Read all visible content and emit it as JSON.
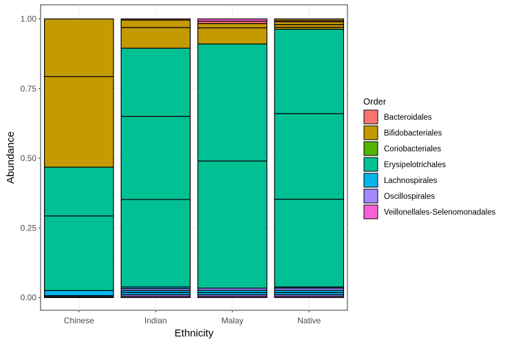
{
  "chart_data": {
    "type": "bar",
    "stacked": true,
    "xlabel": "Ethnicity",
    "ylabel": "Abundance",
    "ylim": [
      0,
      1
    ],
    "yticks": [
      "0.00",
      "0.25",
      "0.50",
      "0.75",
      "1.00"
    ],
    "categories": [
      "Chinese",
      "Indian",
      "Malay",
      "Native"
    ],
    "legend": {
      "title": "Order",
      "position": "right"
    },
    "grid": true,
    "series": [
      {
        "name": "Bacteroidales",
        "color": "#F8766D"
      },
      {
        "name": "Bifidobacteriales",
        "color": "#C49A00"
      },
      {
        "name": "Coriobacteriales",
        "color": "#53B400"
      },
      {
        "name": "Erysipelotrichales",
        "color": "#00C094"
      },
      {
        "name": "Lachnospirales",
        "color": "#00B6EB"
      },
      {
        "name": "Oscillospirales",
        "color": "#A58AFF"
      },
      {
        "name": "Veillonellales-Selenomonadales",
        "color": "#FB61D7"
      }
    ],
    "bars": [
      {
        "category": "Chinese",
        "segments": [
          {
            "series": "Veillonellales-Selenomonadales",
            "value": 0.003
          },
          {
            "series": "Oscillospirales",
            "value": 0.004
          },
          {
            "series": "Lachnospirales",
            "value": 0.018
          },
          {
            "series": "Erysipelotrichales",
            "value": 0.268
          },
          {
            "series": "Erysipelotrichales",
            "value": 0.175
          },
          {
            "series": "Bifidobacteriales",
            "value": 0.325
          },
          {
            "series": "Bifidobacteriales",
            "value": 0.207
          }
        ]
      },
      {
        "category": "Indian",
        "segments": [
          {
            "series": "Veillonellales-Selenomonadales",
            "value": 0.004
          },
          {
            "series": "Oscillospirales",
            "value": 0.006
          },
          {
            "series": "Lachnospirales",
            "value": 0.008
          },
          {
            "series": "Lachnospirales",
            "value": 0.007
          },
          {
            "series": "Oscillospirales",
            "value": 0.007
          },
          {
            "series": "Lachnospirales",
            "value": 0.006
          },
          {
            "series": "Erysipelotrichales",
            "value": 0.314
          },
          {
            "series": "Erysipelotrichales",
            "value": 0.298
          },
          {
            "series": "Erysipelotrichales",
            "value": 0.245
          },
          {
            "series": "Bifidobacteriales",
            "value": 0.074
          },
          {
            "series": "Bifidobacteriales",
            "value": 0.027
          },
          {
            "series": "Bacteroidales",
            "value": 0.004
          }
        ]
      },
      {
        "category": "Malay",
        "segments": [
          {
            "series": "Veillonellales-Selenomonadales",
            "value": 0.004
          },
          {
            "series": "Oscillospirales",
            "value": 0.006
          },
          {
            "series": "Lachnospirales",
            "value": 0.008
          },
          {
            "series": "Lachnospirales",
            "value": 0.008
          },
          {
            "series": "Oscillospirales",
            "value": 0.008
          },
          {
            "series": "Erysipelotrichales",
            "value": 0.456
          },
          {
            "series": "Erysipelotrichales",
            "value": 0.42
          },
          {
            "series": "Bifidobacteriales",
            "value": 0.058
          },
          {
            "series": "Bifidobacteriales",
            "value": 0.015
          },
          {
            "series": "Bacteroidales",
            "value": 0.009
          },
          {
            "series": "Veillonellales-Selenomonadales",
            "value": 0.008
          }
        ]
      },
      {
        "category": "Native",
        "segments": [
          {
            "series": "Veillonellales-Selenomonadales",
            "value": 0.004
          },
          {
            "series": "Oscillospirales",
            "value": 0.006
          },
          {
            "series": "Lachnospirales",
            "value": 0.008
          },
          {
            "series": "Lachnospirales",
            "value": 0.008
          },
          {
            "series": "Oscillospirales",
            "value": 0.008
          },
          {
            "series": "Lachnospirales",
            "value": 0.004
          },
          {
            "series": "Erysipelotrichales",
            "value": 0.315
          },
          {
            "series": "Erysipelotrichales",
            "value": 0.307
          },
          {
            "series": "Erysipelotrichales",
            "value": 0.303
          },
          {
            "series": "Bifidobacteriales",
            "value": 0.007
          },
          {
            "series": "Bifidobacteriales",
            "value": 0.01
          },
          {
            "series": "Bifidobacteriales",
            "value": 0.01
          },
          {
            "series": "Bacteroidales",
            "value": 0.004
          },
          {
            "series": "Bifidobacteriales",
            "value": 0.006
          }
        ]
      }
    ]
  }
}
